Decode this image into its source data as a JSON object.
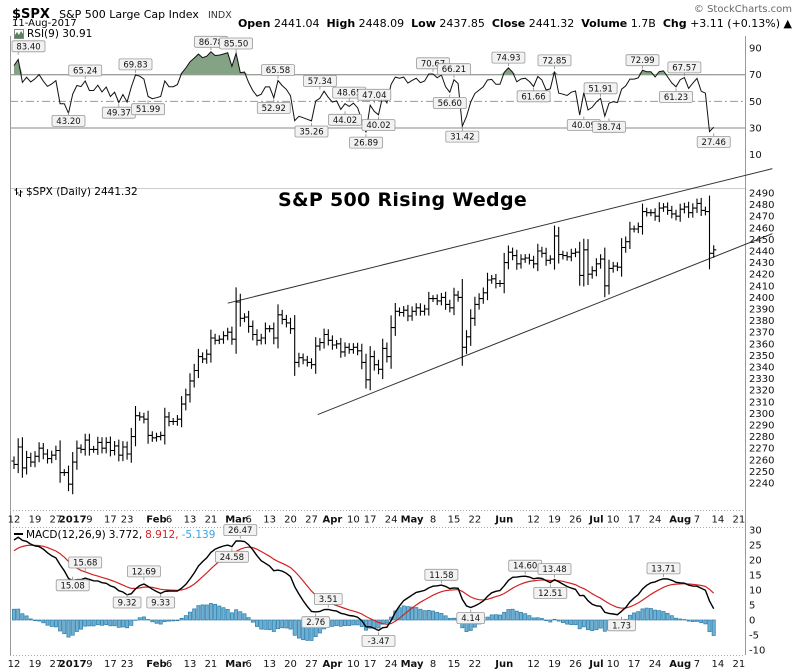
{
  "header": {
    "symbol": "$SPX",
    "name": "S&P 500 Large Cap Index",
    "exchange": "INDX",
    "date": "11-Aug-2017",
    "copyright": "© StockCharts.com",
    "quote": [
      {
        "label": "Open",
        "value": "2441.04"
      },
      {
        "label": "High",
        "value": "2448.09"
      },
      {
        "label": "Low",
        "value": "2437.85"
      },
      {
        "label": "Close",
        "value": "2441.32"
      },
      {
        "label": "Volume",
        "value": "1.7B"
      },
      {
        "label": "Chg",
        "value": "+3.11 (+0.13%) ▲"
      }
    ]
  },
  "panels": {
    "rsi": {
      "label": "RSI(9) 30.91",
      "current": 30.91,
      "y_ticks": [
        90,
        70,
        50,
        30,
        10
      ],
      "levels": {
        "overbought": 70,
        "mid": 50,
        "oversold": 30
      },
      "annotations": [
        [
          "83.40",
          1,
          "a"
        ],
        [
          "43.20",
          13,
          "b"
        ],
        [
          "65.24",
          17,
          "a"
        ],
        [
          "49.37",
          25,
          "b"
        ],
        [
          "69.83",
          29,
          "a"
        ],
        [
          "51.99",
          32,
          "b"
        ],
        [
          "86.78",
          47,
          "a"
        ],
        [
          "85.50",
          53,
          "a"
        ],
        [
          "52.92",
          62,
          "b"
        ],
        [
          "65.58",
          63,
          "a"
        ],
        [
          "35.26",
          71,
          "b"
        ],
        [
          "57.34",
          73,
          "a"
        ],
        [
          "44.02",
          79,
          "b"
        ],
        [
          "48.65",
          80,
          "a"
        ],
        [
          "26.89",
          84,
          "b"
        ],
        [
          "47.04",
          86,
          "a"
        ],
        [
          "40.02",
          87,
          "b"
        ],
        [
          "70.67",
          100,
          "a"
        ],
        [
          "56.60",
          104,
          "b"
        ],
        [
          "66.21",
          105,
          "a"
        ],
        [
          "31.42",
          107,
          "b"
        ],
        [
          "74.93",
          118,
          "a"
        ],
        [
          "61.66",
          124,
          "b"
        ],
        [
          "72.85",
          129,
          "a"
        ],
        [
          "40.09",
          136,
          "b"
        ],
        [
          "51.91",
          140,
          "a"
        ],
        [
          "38.74",
          142,
          "b"
        ],
        [
          "72.99",
          150,
          "a"
        ],
        [
          "61.23",
          158,
          "b"
        ],
        [
          "67.57",
          160,
          "a"
        ],
        [
          "27.46",
          167,
          "b"
        ]
      ]
    },
    "main": {
      "label": "$SPX (Daily) 2441.32",
      "title": "S&P 500 Rising Wedge",
      "price_ticks": {
        "min": 2240,
        "max": 2490,
        "step": 10
      }
    },
    "macd": {
      "label": "MACD(12,26,9)",
      "values": [
        "3.772",
        "8.912",
        "-5.139"
      ],
      "y_ticks": [
        30,
        25,
        20,
        15,
        10,
        5,
        0,
        -5,
        -10
      ],
      "annotations": [
        [
          "15.08",
          14,
          "b"
        ],
        [
          "15.68",
          17,
          "a"
        ],
        [
          "9.32",
          27,
          "b"
        ],
        [
          "12.69",
          31,
          "a"
        ],
        [
          "9.33",
          35,
          "b"
        ],
        [
          "24.58",
          52,
          "b"
        ],
        [
          "26.47",
          54,
          "a"
        ],
        [
          "2.76",
          72,
          "b"
        ],
        [
          "3.51",
          75,
          "a"
        ],
        [
          "-3.47",
          87,
          "b"
        ],
        [
          "11.58",
          102,
          "a"
        ],
        [
          "4.14",
          109,
          "b"
        ],
        [
          "14.60",
          122,
          "a"
        ],
        [
          "12.51",
          128,
          "b"
        ],
        [
          "13.48",
          129,
          "a"
        ],
        [
          "1.73",
          145,
          "b"
        ],
        [
          "13.71",
          155,
          "a"
        ]
      ]
    }
  },
  "x_axis": {
    "labels": [
      {
        "t": "12",
        "i": 0
      },
      {
        "t": "19",
        "i": 5
      },
      {
        "t": "27",
        "i": 10
      },
      {
        "t": "2017",
        "i": 14,
        "b": 1
      },
      {
        "t": "9",
        "i": 18
      },
      {
        "t": "17",
        "i": 23
      },
      {
        "t": "23",
        "i": 27
      },
      {
        "t": "Feb",
        "i": 34,
        "b": 1
      },
      {
        "t": "6",
        "i": 37
      },
      {
        "t": "13",
        "i": 42
      },
      {
        "t": "21",
        "i": 47
      },
      {
        "t": "Mar",
        "i": 53,
        "b": 1
      },
      {
        "t": "6",
        "i": 56
      },
      {
        "t": "13",
        "i": 61
      },
      {
        "t": "20",
        "i": 66
      },
      {
        "t": "27",
        "i": 71
      },
      {
        "t": "Apr",
        "i": 76,
        "b": 1
      },
      {
        "t": "10",
        "i": 81
      },
      {
        "t": "17",
        "i": 85
      },
      {
        "t": "24",
        "i": 90
      },
      {
        "t": "May",
        "i": 95,
        "b": 1
      },
      {
        "t": "8",
        "i": 100
      },
      {
        "t": "15",
        "i": 105
      },
      {
        "t": "22",
        "i": 110
      },
      {
        "t": "Jun",
        "i": 117,
        "b": 1
      },
      {
        "t": "12",
        "i": 124
      },
      {
        "t": "19",
        "i": 129
      },
      {
        "t": "26",
        "i": 134
      },
      {
        "t": "Jul",
        "i": 139,
        "b": 1
      },
      {
        "t": "10",
        "i": 143
      },
      {
        "t": "17",
        "i": 148
      },
      {
        "t": "24",
        "i": 153
      },
      {
        "t": "Aug",
        "i": 159,
        "b": 1
      },
      {
        "t": "7",
        "i": 163
      },
      {
        "t": "14",
        "i": 168
      },
      {
        "t": "21",
        "i": 173
      }
    ]
  },
  "chart_data": {
    "type": "candlestick",
    "symbol": "$SPX",
    "timeframe": "daily",
    "start_date": "12-Dec-2016",
    "end_date": "11-Aug-2017",
    "ylim": [
      2240,
      2490
    ],
    "last_close": 2441.32,
    "closes": [
      2256,
      2271,
      2253,
      2262,
      2258,
      2263,
      2270,
      2265,
      2261,
      2264,
      2268,
      2249,
      2249,
      2239,
      2258,
      2270,
      2269,
      2277,
      2269,
      2269,
      2275,
      2270,
      2275,
      2268,
      2272,
      2264,
      2271,
      2265,
      2280,
      2298,
      2297,
      2295,
      2281,
      2279,
      2280,
      2281,
      2297,
      2293,
      2293,
      2295,
      2308,
      2316,
      2328,
      2337,
      2349,
      2347,
      2351,
      2365,
      2363,
      2364,
      2367,
      2370,
      2364,
      2396,
      2382,
      2383,
      2375,
      2368,
      2363,
      2365,
      2373,
      2373,
      2365,
      2385,
      2381,
      2378,
      2373,
      2344,
      2348,
      2346,
      2344,
      2342,
      2358,
      2361,
      2368,
      2363,
      2359,
      2360,
      2353,
      2357,
      2355,
      2357,
      2354,
      2344,
      2329,
      2349,
      2342,
      2338,
      2356,
      2349,
      2374,
      2388,
      2387,
      2389,
      2384,
      2388,
      2391,
      2388,
      2390,
      2399,
      2399,
      2397,
      2400,
      2394,
      2391,
      2402,
      2400,
      2357,
      2366,
      2382,
      2394,
      2399,
      2404,
      2415,
      2416,
      2412,
      2412,
      2430,
      2439,
      2436,
      2429,
      2433,
      2434,
      2432,
      2429,
      2440,
      2438,
      2432,
      2433,
      2453,
      2437,
      2436,
      2435,
      2438,
      2439,
      2419,
      2441,
      2420,
      2423,
      2429,
      2433,
      2410,
      2425,
      2427,
      2426,
      2443,
      2448,
      2459,
      2459,
      2461,
      2474,
      2473,
      2473,
      2470,
      2477,
      2478,
      2475,
      2472,
      2470,
      2476,
      2478,
      2473,
      2477,
      2481,
      2475,
      2474,
      2438,
      2441
    ],
    "lead_in_closes": [
      2133,
      2126,
      2085,
      2097,
      2125,
      2130,
      2140,
      2163,
      2167,
      2164,
      2164,
      2180,
      2176,
      2187,
      2182,
      2198,
      2202,
      2205,
      2201,
      2199,
      2192,
      2180,
      2193,
      2212,
      2222,
      2232,
      2242,
      2247,
      2253,
      2260,
      2259
    ],
    "overlays": {
      "wedge_upper": [
        [
          51,
          2395
        ],
        [
          181,
          2511
        ]
      ],
      "wedge_lower": [
        [
          72.5,
          2299
        ],
        [
          181,
          2455
        ]
      ]
    },
    "indicators": [
      {
        "type": "line",
        "name": "RSI",
        "period": 9,
        "current": 30.91,
        "range": [
          10,
          90
        ]
      },
      {
        "type": "macd",
        "name": "MACD",
        "params": [
          12,
          26,
          9
        ],
        "current": [
          3.772,
          8.912,
          -5.139
        ],
        "range": [
          -10,
          30
        ]
      }
    ],
    "colors": {
      "rsi_fill": "#84a284",
      "macd_line": "#000000",
      "signal_line": "#d42222",
      "histogram": "#6cb1d6",
      "histogram_border": "#2e7ba6",
      "bar": "#000000",
      "wedge": "#333333"
    }
  }
}
